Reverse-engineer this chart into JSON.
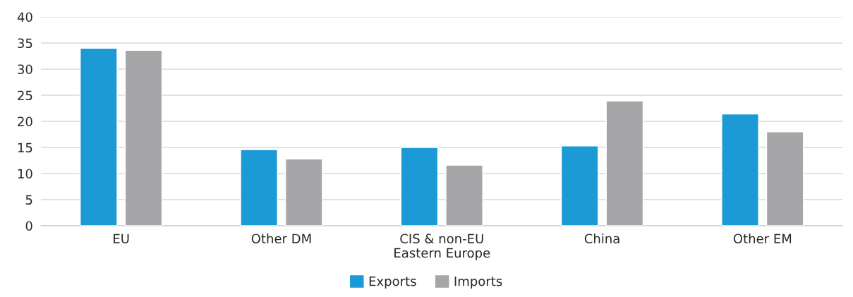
{
  "chart_data": {
    "type": "bar",
    "categories": [
      "EU",
      "Other DM",
      "CIS & non-EU\nEastern Europe",
      "China",
      "Other EM"
    ],
    "series": [
      {
        "name": "Exports",
        "color": "#1b9ad6",
        "values": [
          34.0,
          14.6,
          15.0,
          15.3,
          21.4
        ]
      },
      {
        "name": "Imports",
        "color": "#a6a6a8",
        "values": [
          33.6,
          12.8,
          11.6,
          23.9,
          18.0
        ]
      }
    ],
    "ylim": [
      0,
      40
    ],
    "yticks": [
      0,
      5,
      10,
      15,
      20,
      25,
      30,
      35,
      40
    ],
    "grid": "y",
    "legend": "bottom"
  }
}
